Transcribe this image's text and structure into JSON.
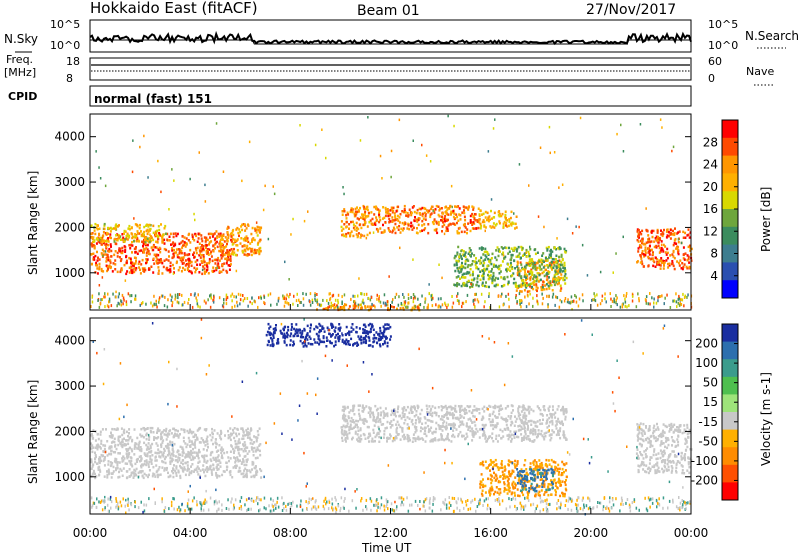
{
  "header": {
    "station": "Hokkaido East (fitACF)",
    "beam": "Beam 01",
    "date": "27/Nov/2017"
  },
  "noise_panel": {
    "left_label": "N.Sky",
    "right_label": "N.Search",
    "tick_top": "10^5",
    "tick_bottom": "10^0",
    "right_tick_top": "10^5",
    "right_tick_bottom": "10^0"
  },
  "freq_panel": {
    "left_label_1": "Freq.",
    "left_label_2": "[MHz]",
    "tick_top": "18",
    "tick_bottom": "8",
    "right_label": "Nave",
    "right_tick_top": "60",
    "right_tick_bottom": "0"
  },
  "cpid_panel": {
    "left_label": "CPID",
    "mode_text": "normal (fast) 151"
  },
  "power_panel": {
    "ylabel": "Slant Range [km]",
    "colorbar_label": "Power [dB]",
    "colorbar_ticks": [
      "28",
      "24",
      "20",
      "16",
      "12",
      "8",
      "4"
    ],
    "colorbar_colors": [
      "#ff0000",
      "#ff4a00",
      "#ff9600",
      "#ffb000",
      "#d8d800",
      "#6ea63c",
      "#3b8c5e",
      "#3d7d8f",
      "#2a4fb0",
      "#0000ff"
    ]
  },
  "velocity_panel": {
    "ylabel": "Slant Range [km]",
    "colorbar_label": "Velocity [m s-1]",
    "colorbar_ticks": [
      "200",
      "100",
      "50",
      "15",
      "-15",
      "-50",
      "-100",
      "-200"
    ],
    "colorbar_colors": [
      "#1a2ea0",
      "#2c6fae",
      "#3b9c8c",
      "#4fbf4f",
      "#9ee37a",
      "#c8c8c8",
      "#ffb000",
      "#ff8c00",
      "#ff5000",
      "#ff0000"
    ]
  },
  "xaxis": {
    "label": "Time UT",
    "ticks": [
      "00:00",
      "04:00",
      "08:00",
      "12:00",
      "16:00",
      "20:00",
      "00:00"
    ]
  },
  "chart_data": {
    "type": "heatmap",
    "title": "Hokkaido East (fitACF) Beam 01 27/Nov/2017",
    "xlabel": "Time UT",
    "ylabel": "Slant Range [km]",
    "x_range_hours": [
      0,
      24
    ],
    "y_range_km": [
      180,
      4500
    ],
    "yticks": [
      1000,
      2000,
      3000,
      4000
    ],
    "panels": [
      {
        "name": "Power [dB]",
        "range": [
          0,
          32
        ],
        "echo_regions": [
          {
            "t": [
              0.0,
              5.6
            ],
            "range_km": [
              1000,
              1900
            ],
            "value": 28
          },
          {
            "t": [
              0.0,
              3.0
            ],
            "range_km": [
              1700,
              2100
            ],
            "value": 20
          },
          {
            "t": [
              5.0,
              6.8
            ],
            "range_km": [
              1400,
              2100
            ],
            "value": 24
          },
          {
            "t": [
              10.0,
              11.2
            ],
            "range_km": [
              1800,
              2500
            ],
            "value": 24
          },
          {
            "t": [
              11.2,
              15.5
            ],
            "range_km": [
              1900,
              2500
            ],
            "value": 26
          },
          {
            "t": [
              15.5,
              17.0
            ],
            "range_km": [
              2000,
              2400
            ],
            "value": 22
          },
          {
            "t": [
              17.0,
              18.8
            ],
            "range_km": [
              600,
              1300
            ],
            "value": 24
          },
          {
            "t": [
              14.5,
              19.0
            ],
            "range_km": [
              700,
              1600
            ],
            "value": 14
          },
          {
            "t": [
              21.8,
              24.0
            ],
            "range_km": [
              1100,
              2000
            ],
            "value": 28
          },
          {
            "t": [
              9.0,
              14.0
            ],
            "range_km": [
              200,
              320
            ],
            "value": 24
          }
        ]
      },
      {
        "name": "Velocity [m s-1]",
        "range": [
          -200,
          200
        ],
        "echo_regions": [
          {
            "t": [
              0.0,
              6.8
            ],
            "range_km": [
              1000,
              2100
            ],
            "value": 0
          },
          {
            "t": [
              10.0,
              19.0
            ],
            "range_km": [
              1800,
              2600
            ],
            "value": 0
          },
          {
            "t": [
              15.5,
              19.0
            ],
            "range_km": [
              600,
              1400
            ],
            "value": -50
          },
          {
            "t": [
              17.0,
              18.5
            ],
            "range_km": [
              700,
              1200
            ],
            "value": 60
          },
          {
            "t": [
              21.8,
              24.0
            ],
            "range_km": [
              1100,
              2200
            ],
            "value": 0
          },
          {
            "t": [
              7.0,
              12.0
            ],
            "range_km": [
              3900,
              4400
            ],
            "value": 200
          }
        ]
      }
    ]
  }
}
